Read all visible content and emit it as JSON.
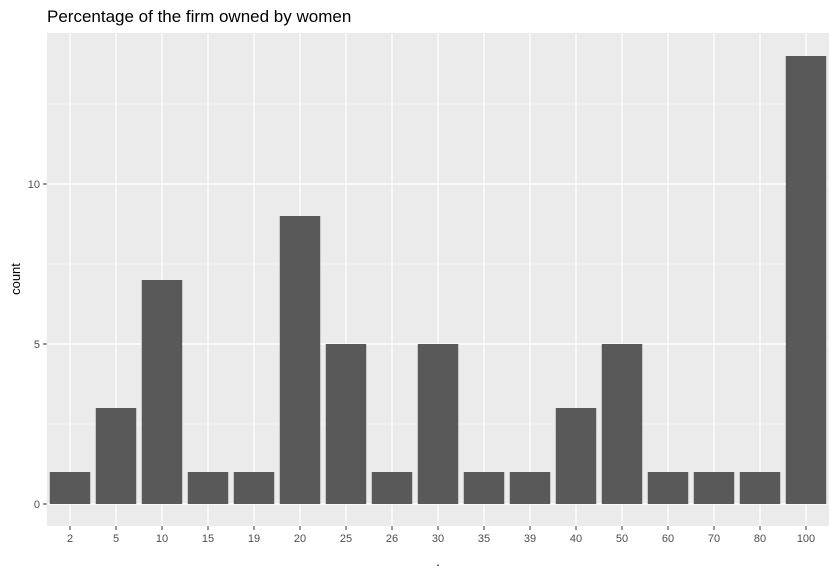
{
  "chart_data": {
    "type": "bar",
    "title": "Percentage of the firm owned by women",
    "xlabel": ".",
    "ylabel": "count",
    "categories": [
      "2",
      "5",
      "10",
      "15",
      "19",
      "20",
      "25",
      "26",
      "30",
      "35",
      "39",
      "40",
      "50",
      "60",
      "70",
      "80",
      "100"
    ],
    "values": [
      1,
      3,
      7,
      1,
      1,
      9,
      5,
      1,
      5,
      1,
      1,
      3,
      5,
      1,
      1,
      1,
      14
    ],
    "ylim": [
      0,
      14.7
    ],
    "y_ticks": [
      0,
      5,
      10
    ],
    "y_minor_ticks": [
      2.5,
      7.5,
      12.5
    ],
    "grid": true,
    "colors": {
      "bar": "#595959",
      "panel": "#ebebeb",
      "grid_major": "#ffffff",
      "grid_minor": "#f5f5f5"
    }
  }
}
